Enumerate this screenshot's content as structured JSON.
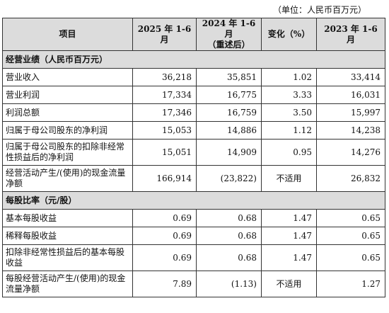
{
  "unit_note": "（单位：人民币百万元）",
  "headers": [
    "项目",
    "2025 年 1-6 月",
    "2024 年 1-6 月\n（重述后）",
    "变化（%）",
    "2023 年 1-6 月"
  ],
  "sections": [
    {
      "title": "经营业绩（人民币百万元）",
      "rows": [
        {
          "label": "营业收入",
          "v2025": "36,218",
          "v2024": "35,851",
          "change": "1.02",
          "v2023": "33,414"
        },
        {
          "label": "营业利润",
          "v2025": "17,334",
          "v2024": "16,775",
          "change": "3.33",
          "v2023": "16,031"
        },
        {
          "label": "利润总额",
          "v2025": "17,346",
          "v2024": "16,759",
          "change": "3.50",
          "v2023": "15,997"
        },
        {
          "label": "归属于母公司股东的净利润",
          "v2025": "15,053",
          "v2024": "14,886",
          "change": "1.12",
          "v2023": "14,238"
        },
        {
          "label": "归属于母公司股东的扣除非经常性损益后的净利润",
          "v2025": "15,051",
          "v2024": "14,909",
          "change": "0.95",
          "v2023": "14,276"
        },
        {
          "label": "经营活动产生/(使用)的现金流量净额",
          "v2025": "166,914",
          "v2024": "(23,822)",
          "change": "不适用",
          "v2023": "26,832"
        }
      ]
    },
    {
      "title": "每股比率（元/股）",
      "rows": [
        {
          "label": "基本每股收益",
          "v2025": "0.69",
          "v2024": "0.68",
          "change": "1.47",
          "v2023": "0.65"
        },
        {
          "label": "稀释每股收益",
          "v2025": "0.69",
          "v2024": "0.68",
          "change": "1.47",
          "v2023": "0.65"
        },
        {
          "label": "扣除非经常性损益后的基本每股收益",
          "v2025": "0.69",
          "v2024": "0.68",
          "change": "1.47",
          "v2023": "0.65"
        },
        {
          "label": "每股经营活动产生/(使用)的现金流量净额",
          "v2025": "7.89",
          "v2024": "(1.13)",
          "change": "不适用",
          "v2023": "1.27"
        }
      ]
    }
  ]
}
